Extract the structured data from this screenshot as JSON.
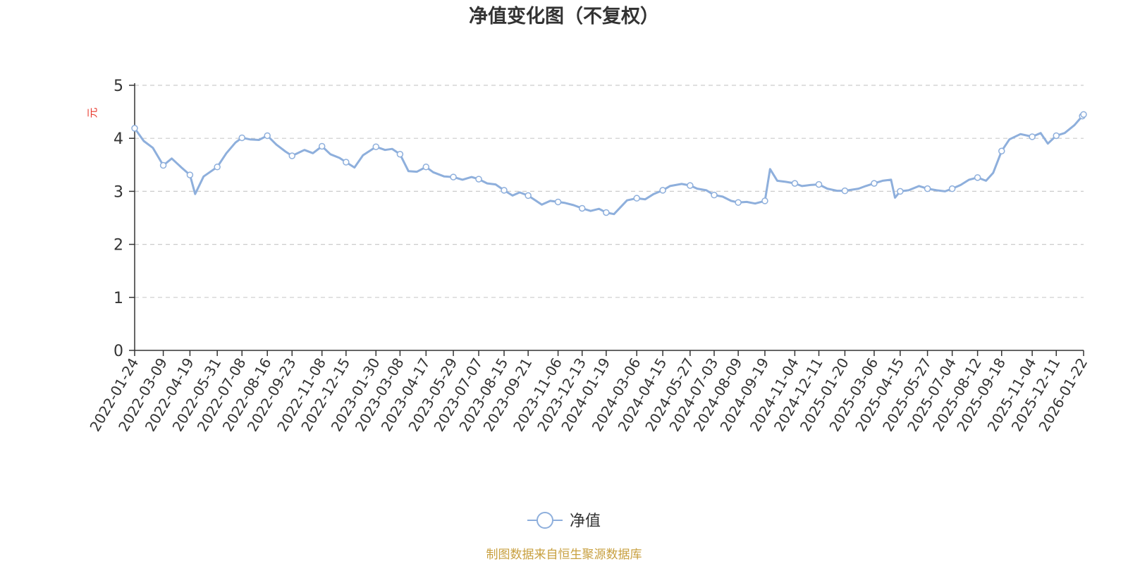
{
  "chart_data": {
    "type": "line",
    "title": "净值变化图（不复权）",
    "ylabel": "元",
    "ylim": [
      0,
      5
    ],
    "yticks": [
      0,
      1,
      2,
      3,
      4,
      5
    ],
    "grid": true,
    "legend_position": "bottom",
    "x_ticks": [
      "2022-01-24",
      "2022-03-09",
      "2022-04-19",
      "2022-05-31",
      "2022-07-08",
      "2022-08-16",
      "2022-09-23",
      "2022-11-08",
      "2022-12-15",
      "2023-01-30",
      "2023-03-08",
      "2023-04-17",
      "2023-05-29",
      "2023-07-07",
      "2023-08-15",
      "2023-09-21",
      "2023-11-06",
      "2023-12-13",
      "2024-01-19",
      "2024-03-06",
      "2024-04-15",
      "2024-05-27",
      "2024-07-03",
      "2024-08-09",
      "2024-09-19",
      "2024-11-04",
      "2024-12-11",
      "2025-01-20",
      "2025-03-06",
      "2025-04-15",
      "2025-05-27",
      "2025-07-04",
      "2025-08-12",
      "2025-09-18",
      "2025-11-04",
      "2025-12-11",
      "2026-01-22"
    ],
    "series": [
      {
        "name": "净值",
        "color": "#8eafdc",
        "x": [
          "2022-01-24",
          "2022-02-07",
          "2022-02-21",
          "2022-03-09",
          "2022-03-22",
          "2022-04-06",
          "2022-04-19",
          "2022-04-27",
          "2022-05-10",
          "2022-05-31",
          "2022-06-14",
          "2022-06-28",
          "2022-07-08",
          "2022-07-20",
          "2022-08-03",
          "2022-08-16",
          "2022-08-30",
          "2022-09-13",
          "2022-09-23",
          "2022-10-12",
          "2022-10-25",
          "2022-11-08",
          "2022-11-21",
          "2022-12-05",
          "2022-12-15",
          "2022-12-28",
          "2023-01-10",
          "2023-01-30",
          "2023-02-13",
          "2023-02-24",
          "2023-03-08",
          "2023-03-21",
          "2023-04-03",
          "2023-04-17",
          "2023-04-28",
          "2023-05-15",
          "2023-05-29",
          "2023-06-12",
          "2023-06-26",
          "2023-07-07",
          "2023-07-20",
          "2023-08-02",
          "2023-08-15",
          "2023-08-28",
          "2023-09-08",
          "2023-09-21",
          "2023-10-12",
          "2023-10-25",
          "2023-11-06",
          "2023-11-17",
          "2023-11-30",
          "2023-12-13",
          "2023-12-26",
          "2024-01-08",
          "2024-01-19",
          "2024-01-31",
          "2024-02-20",
          "2024-03-06",
          "2024-03-19",
          "2024-04-01",
          "2024-04-15",
          "2024-04-26",
          "2024-05-14",
          "2024-05-27",
          "2024-06-07",
          "2024-06-21",
          "2024-07-03",
          "2024-07-16",
          "2024-07-29",
          "2024-08-09",
          "2024-08-22",
          "2024-09-04",
          "2024-09-19",
          "2024-09-27",
          "2024-10-08",
          "2024-10-21",
          "2024-11-04",
          "2024-11-15",
          "2024-11-28",
          "2024-12-11",
          "2024-12-24",
          "2025-01-08",
          "2025-01-20",
          "2025-02-10",
          "2025-02-21",
          "2025-03-06",
          "2025-03-19",
          "2025-04-01",
          "2025-04-07",
          "2025-04-15",
          "2025-04-28",
          "2025-05-14",
          "2025-05-27",
          "2025-06-10",
          "2025-06-23",
          "2025-07-04",
          "2025-07-17",
          "2025-07-30",
          "2025-08-12",
          "2025-08-25",
          "2025-09-05",
          "2025-09-18",
          "2025-09-30",
          "2025-10-17",
          "2025-11-04",
          "2025-11-17",
          "2025-11-28",
          "2025-12-11",
          "2025-12-24",
          "2026-01-08",
          "2026-01-20",
          "2026-01-22"
        ],
        "values": [
          4.19,
          3.95,
          3.82,
          3.49,
          3.62,
          3.45,
          3.31,
          2.95,
          3.28,
          3.46,
          3.72,
          3.92,
          4.01,
          3.98,
          3.97,
          4.05,
          3.88,
          3.75,
          3.67,
          3.78,
          3.72,
          3.85,
          3.7,
          3.63,
          3.55,
          3.45,
          3.68,
          3.84,
          3.78,
          3.8,
          3.7,
          3.38,
          3.37,
          3.46,
          3.36,
          3.28,
          3.27,
          3.22,
          3.27,
          3.23,
          3.15,
          3.13,
          3.02,
          2.92,
          2.98,
          2.92,
          2.75,
          2.82,
          2.8,
          2.78,
          2.74,
          2.68,
          2.63,
          2.67,
          2.6,
          2.57,
          2.83,
          2.87,
          2.85,
          2.95,
          3.02,
          3.1,
          3.14,
          3.11,
          3.05,
          3.02,
          2.93,
          2.9,
          2.82,
          2.79,
          2.8,
          2.77,
          2.82,
          3.42,
          3.2,
          3.18,
          3.15,
          3.1,
          3.12,
          3.13,
          3.05,
          3.01,
          3.01,
          3.05,
          3.1,
          3.15,
          3.2,
          3.22,
          2.88,
          3.0,
          3.02,
          3.1,
          3.05,
          3.02,
          3.0,
          3.05,
          3.12,
          3.22,
          3.26,
          3.2,
          3.35,
          3.76,
          3.98,
          4.08,
          4.03,
          4.1,
          3.9,
          4.05,
          4.1,
          4.25,
          4.42,
          4.45
        ]
      }
    ],
    "marker_dates": [
      "2022-01-24",
      "2022-03-09",
      "2022-04-19",
      "2022-05-31",
      "2022-07-08",
      "2022-08-16",
      "2022-09-23",
      "2022-11-08",
      "2022-12-15",
      "2023-01-30",
      "2023-03-08",
      "2023-04-17",
      "2023-05-29",
      "2023-07-07",
      "2023-08-15",
      "2023-09-21",
      "2023-11-06",
      "2023-12-13",
      "2024-01-19",
      "2024-03-06",
      "2024-04-15",
      "2024-05-27",
      "2024-07-03",
      "2024-08-09",
      "2024-09-19",
      "2024-11-04",
      "2024-12-11",
      "2025-01-20",
      "2025-03-06",
      "2025-04-15",
      "2025-05-27",
      "2025-07-04",
      "2025-08-12",
      "2025-09-18",
      "2025-11-04",
      "2025-12-11",
      "2026-01-20",
      "2026-01-22"
    ]
  },
  "legend": {
    "label": "净值"
  },
  "source": "制图数据来自恒生聚源数据库"
}
